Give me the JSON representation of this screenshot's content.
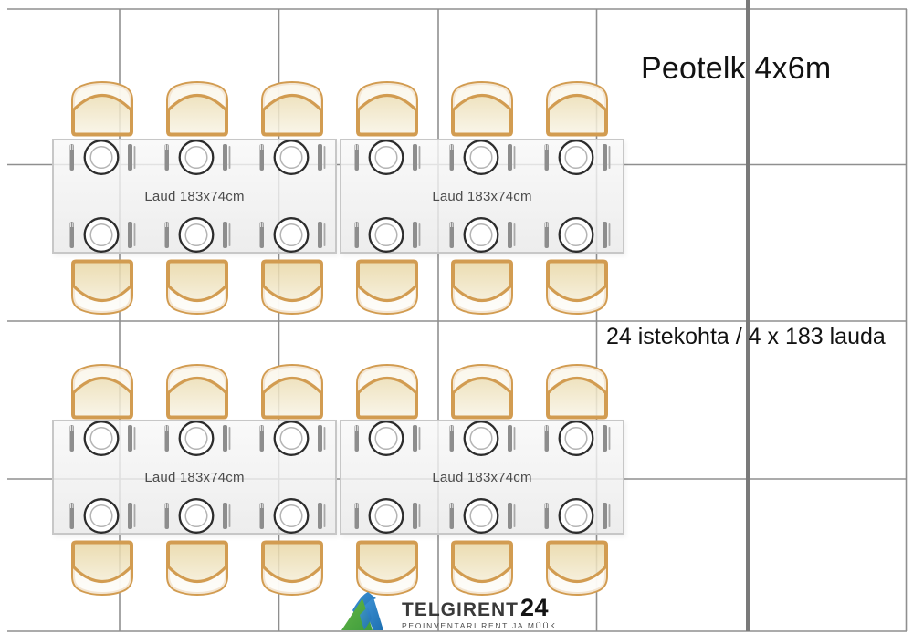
{
  "title": "Peotelk 4x6m",
  "capacity_note": "24 istekohta / 4 x 183 lauda",
  "tables": [
    {
      "label": "Laud 183x74cm"
    },
    {
      "label": "Laud 183x74cm"
    },
    {
      "label": "Laud 183x74cm"
    },
    {
      "label": "Laud 183x74cm"
    }
  ],
  "furniture": {
    "table_count": 4,
    "chair_count": 24,
    "place_setting_count": 24,
    "chairs_per_row": 6,
    "chair_rows": 4,
    "place_setting_rows": 4
  },
  "logo": {
    "brand": "TELGIRENT",
    "brand_number": "24",
    "tagline": "PEOINVENTARI RENT JA MÜÜK"
  },
  "colors": {
    "chair_outline": "#D29C51",
    "chair_fill_top": "#E8D6A3",
    "chair_fill_bottom": "#F8F4E6",
    "table_border": "#c7c7c7",
    "grid_line": "#8f8f8f",
    "wall_line": "#7a7a7a",
    "plate_rim": "#2d2d2d",
    "plate_inner": "#b4b4b4",
    "cutlery": "#8d8d8d",
    "logo_green": "#3E9C3C",
    "logo_blue": "#1E6FB0"
  }
}
